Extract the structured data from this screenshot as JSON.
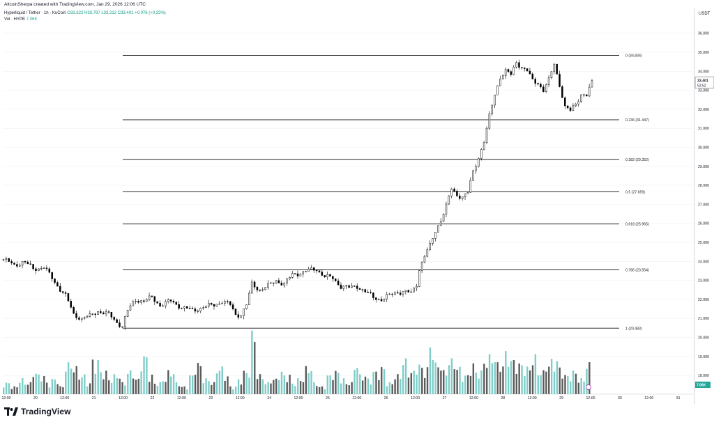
{
  "header": {
    "attribution": "AltcoinSherpa created with TradingView.com, Jan 29, 2026 12:06 UTC",
    "symbol": "Hyperliquid / Tether · 1h · KuCoin",
    "open": "O33.322",
    "high": "H33.797",
    "low": "L33.212",
    "close": "C33.401",
    "change": "+0.076 (+0.23%)",
    "volume_label": "Vol · HYPE",
    "volume_value": "7.06K"
  },
  "currency": "USDT",
  "brand": "TradingView",
  "colors": {
    "up": "#ffffff",
    "down": "#000000",
    "vol_up": "#7fcdc8",
    "vol_down": "#5a5a5a",
    "fib_line": "#2a2a2a",
    "grid": "#f0f0f0"
  },
  "chart_data": {
    "type": "candlestick",
    "ylim": [
      17.0,
      36.8
    ],
    "y_ticks": [
      "36.000",
      "35.000",
      "34.000",
      "33.000",
      "32.000",
      "31.000",
      "30.000",
      "29.000",
      "28.000",
      "27.000",
      "26.000",
      "25.000",
      "24.000",
      "23.000",
      "22.000",
      "21.000",
      "20.000",
      "19.000",
      "18.000"
    ],
    "x_ticks": [
      "12:00",
      "20",
      "12:00",
      "21",
      "12:00",
      "22",
      "12:00",
      "23",
      "12:00",
      "24",
      "12:00",
      "25",
      "12:00",
      "26",
      "12:00",
      "27",
      "12:00",
      "28",
      "12:00",
      "29",
      "12:00",
      "30",
      "12:00",
      "31"
    ],
    "current_price": "33.401",
    "countdown": "53:52",
    "current_volume": "7.06K",
    "fib_levels": [
      {
        "ratio": "0",
        "price": 34.834,
        "label": "0 (34.834)"
      },
      {
        "ratio": "0.236",
        "price": 31.447,
        "label": "0.236 (31.447)"
      },
      {
        "ratio": "0.382",
        "price": 29.352,
        "label": "0.382 (29.352)"
      },
      {
        "ratio": "0.5",
        "price": 27.659,
        "label": "0.5 (27.659)"
      },
      {
        "ratio": "0.618",
        "price": 25.965,
        "label": "0.618 (25.965)"
      },
      {
        "ratio": "0.786",
        "price": 23.554,
        "label": "0.786 (23.554)"
      },
      {
        "ratio": "1",
        "price": 20.483,
        "label": "1 (20.483)"
      }
    ],
    "close_path": [
      [
        0,
        24.1
      ],
      [
        8,
        23.8
      ],
      [
        15,
        24.0
      ],
      [
        22,
        23.6
      ],
      [
        30,
        23.7
      ],
      [
        38,
        22.9
      ],
      [
        46,
        22.2
      ],
      [
        52,
        21.2
      ],
      [
        58,
        21.0
      ],
      [
        64,
        21.1
      ],
      [
        70,
        21.4
      ],
      [
        78,
        21.2
      ],
      [
        84,
        20.8
      ],
      [
        88,
        20.6
      ],
      [
        92,
        21.4
      ],
      [
        98,
        22.0
      ],
      [
        104,
        21.9
      ],
      [
        110,
        22.1
      ],
      [
        116,
        21.7
      ],
      [
        124,
        21.9
      ],
      [
        132,
        21.6
      ],
      [
        140,
        21.4
      ],
      [
        148,
        21.6
      ],
      [
        156,
        21.7
      ],
      [
        162,
        21.9
      ],
      [
        168,
        21.7
      ],
      [
        172,
        21.2
      ],
      [
        176,
        21.2
      ],
      [
        180,
        21.7
      ],
      [
        184,
        22.8
      ],
      [
        190,
        22.5
      ],
      [
        196,
        22.7
      ],
      [
        202,
        23.0
      ],
      [
        208,
        22.8
      ],
      [
        214,
        23.3
      ],
      [
        220,
        23.4
      ],
      [
        226,
        23.5
      ],
      [
        232,
        23.6
      ],
      [
        238,
        23.2
      ],
      [
        244,
        23.1
      ],
      [
        250,
        22.7
      ],
      [
        256,
        22.6
      ],
      [
        262,
        22.7
      ],
      [
        268,
        22.4
      ],
      [
        274,
        22.1
      ],
      [
        280,
        22.0
      ],
      [
        286,
        22.2
      ],
      [
        292,
        22.4
      ],
      [
        298,
        22.4
      ],
      [
        302,
        22.3
      ],
      [
        306,
        22.8
      ],
      [
        308,
        23.6
      ],
      [
        312,
        24.3
      ],
      [
        316,
        24.8
      ],
      [
        320,
        25.6
      ],
      [
        324,
        26.2
      ],
      [
        328,
        26.9
      ],
      [
        332,
        27.8
      ],
      [
        336,
        27.5
      ],
      [
        340,
        27.4
      ],
      [
        344,
        27.6
      ],
      [
        348,
        28.7
      ],
      [
        352,
        29.5
      ],
      [
        356,
        30.3
      ],
      [
        360,
        31.6
      ],
      [
        364,
        32.8
      ],
      [
        368,
        33.7
      ],
      [
        372,
        34.0
      ],
      [
        376,
        33.8
      ],
      [
        380,
        34.5
      ],
      [
        384,
        34.2
      ],
      [
        388,
        34.0
      ],
      [
        392,
        33.5
      ],
      [
        396,
        33.4
      ],
      [
        400,
        33.0
      ],
      [
        404,
        33.5
      ],
      [
        408,
        34.4
      ],
      [
        412,
        33.3
      ],
      [
        416,
        32.1
      ],
      [
        420,
        31.9
      ],
      [
        424,
        32.3
      ],
      [
        428,
        32.8
      ],
      [
        432,
        32.7
      ],
      [
        436,
        33.4
      ]
    ],
    "volume_profile": [
      3,
      2,
      4,
      3,
      6,
      5,
      3,
      4,
      2,
      8,
      7,
      5,
      3,
      9,
      6,
      4,
      5,
      3,
      6,
      4,
      10,
      5,
      3,
      4,
      6,
      3,
      2,
      5,
      8,
      4,
      3,
      7,
      5,
      2,
      4,
      6,
      16,
      5,
      3,
      4,
      6,
      5,
      3,
      4,
      7,
      3,
      2,
      5,
      6,
      4,
      3,
      8,
      5,
      4,
      6,
      7,
      3,
      5,
      9,
      6,
      8,
      7,
      13,
      8,
      6,
      9,
      7,
      5,
      8,
      6,
      9,
      10,
      8,
      11,
      9,
      8,
      7,
      10,
      6,
      8,
      9,
      7,
      5,
      6,
      4,
      8
    ]
  }
}
